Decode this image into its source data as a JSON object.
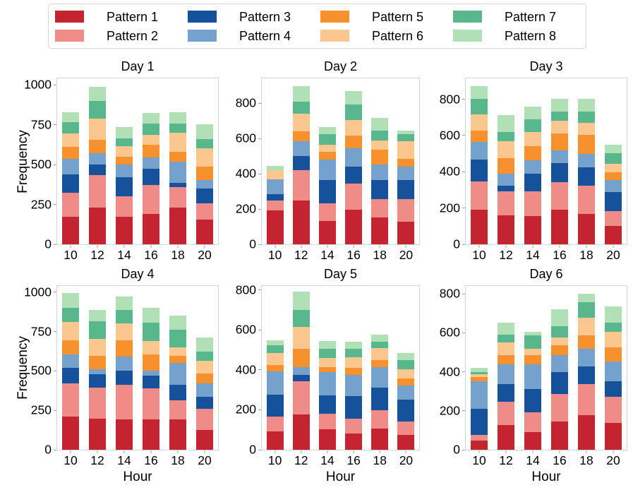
{
  "legend": {
    "items": [
      {
        "label": "Pattern 1",
        "color": "#c3242f"
      },
      {
        "label": "Pattern 2",
        "color": "#f08c88"
      },
      {
        "label": "Pattern 3",
        "color": "#15529b"
      },
      {
        "label": "Pattern 4",
        "color": "#74a2cd"
      },
      {
        "label": "Pattern 5",
        "color": "#f6912e"
      },
      {
        "label": "Pattern 6",
        "color": "#fbc78e"
      },
      {
        "label": "Pattern 7",
        "color": "#58b78c"
      },
      {
        "label": "Pattern 8",
        "color": "#b1e0b7"
      }
    ]
  },
  "axes": {
    "ylabel": "Frequency",
    "xlabel": "Hour"
  },
  "chart_data": [
    {
      "type": "bar",
      "stacked": true,
      "title": "Day 1",
      "categories": [
        "10",
        "12",
        "14",
        "16",
        "18",
        "20"
      ],
      "xlabel": "",
      "ylabel": "Frequency",
      "ylim": [
        0,
        1040
      ],
      "yticks": [
        0,
        250,
        500,
        750,
        1000
      ],
      "series": [
        {
          "name": "Pattern 1",
          "values": [
            170,
            230,
            170,
            190,
            230,
            155
          ]
        },
        {
          "name": "Pattern 2",
          "values": [
            150,
            200,
            130,
            180,
            125,
            100
          ]
        },
        {
          "name": "Pattern 3",
          "values": [
            115,
            65,
            115,
            100,
            25,
            90
          ]
        },
        {
          "name": "Pattern 4",
          "values": [
            95,
            70,
            80,
            70,
            135,
            55
          ]
        },
        {
          "name": "Pattern 5",
          "values": [
            75,
            85,
            50,
            80,
            60,
            85
          ]
        },
        {
          "name": "Pattern 6",
          "values": [
            85,
            130,
            65,
            60,
            120,
            110
          ]
        },
        {
          "name": "Pattern 7",
          "values": [
            70,
            110,
            50,
            70,
            55,
            60
          ]
        },
        {
          "name": "Pattern 8",
          "values": [
            60,
            90,
            70,
            65,
            70,
            90
          ]
        }
      ]
    },
    {
      "type": "bar",
      "stacked": true,
      "title": "Day 2",
      "categories": [
        "10",
        "12",
        "14",
        "16",
        "18",
        "20"
      ],
      "xlabel": "",
      "ylabel": "",
      "ylim": [
        0,
        940
      ],
      "yticks": [
        0,
        200,
        400,
        600,
        800
      ],
      "series": [
        {
          "name": "Pattern 1",
          "values": [
            190,
            245,
            130,
            195,
            150,
            125
          ]
        },
        {
          "name": "Pattern 2",
          "values": [
            55,
            170,
            100,
            145,
            105,
            130
          ]
        },
        {
          "name": "Pattern 3",
          "values": [
            35,
            80,
            130,
            95,
            105,
            105
          ]
        },
        {
          "name": "Pattern 4",
          "values": [
            85,
            85,
            115,
            105,
            90,
            75
          ]
        },
        {
          "name": "Pattern 5",
          "values": [
            0,
            55,
            45,
            70,
            80,
            45
          ]
        },
        {
          "name": "Pattern 6",
          "values": [
            50,
            100,
            40,
            90,
            55,
            100
          ]
        },
        {
          "name": "Pattern 7",
          "values": [
            0,
            65,
            60,
            85,
            55,
            40
          ]
        },
        {
          "name": "Pattern 8",
          "values": [
            25,
            90,
            40,
            75,
            70,
            20
          ]
        }
      ]
    },
    {
      "type": "bar",
      "stacked": true,
      "title": "Day 3",
      "categories": [
        "10",
        "12",
        "14",
        "16",
        "18",
        "20"
      ],
      "xlabel": "",
      "ylabel": "",
      "ylim": [
        0,
        915
      ],
      "yticks": [
        0,
        200,
        400,
        600,
        800
      ],
      "series": [
        {
          "name": "Pattern 1",
          "values": [
            190,
            160,
            155,
            190,
            165,
            100
          ]
        },
        {
          "name": "Pattern 2",
          "values": [
            155,
            130,
            135,
            150,
            155,
            80
          ]
        },
        {
          "name": "Pattern 3",
          "values": [
            120,
            30,
            95,
            105,
            100,
            105
          ]
        },
        {
          "name": "Pattern 4",
          "values": [
            95,
            65,
            75,
            70,
            75,
            65
          ]
        },
        {
          "name": "Pattern 5",
          "values": [
            60,
            85,
            75,
            90,
            105,
            45
          ]
        },
        {
          "name": "Pattern 6",
          "values": [
            90,
            95,
            80,
            70,
            65,
            45
          ]
        },
        {
          "name": "Pattern 7",
          "values": [
            85,
            50,
            70,
            50,
            60,
            60
          ]
        },
        {
          "name": "Pattern 8",
          "values": [
            70,
            90,
            70,
            70,
            70,
            45
          ]
        }
      ]
    },
    {
      "type": "bar",
      "stacked": true,
      "title": "Day 4",
      "categories": [
        "10",
        "12",
        "14",
        "16",
        "18",
        "20"
      ],
      "xlabel": "Hour",
      "ylabel": "Frequency",
      "ylim": [
        0,
        1040
      ],
      "yticks": [
        0,
        250,
        500,
        750,
        1000
      ],
      "series": [
        {
          "name": "Pattern 1",
          "values": [
            210,
            195,
            190,
            190,
            190,
            125
          ]
        },
        {
          "name": "Pattern 2",
          "values": [
            210,
            195,
            220,
            195,
            120,
            135
          ]
        },
        {
          "name": "Pattern 3",
          "values": [
            95,
            85,
            90,
            80,
            100,
            75
          ]
        },
        {
          "name": "Pattern 4",
          "values": [
            85,
            30,
            85,
            35,
            135,
            85
          ]
        },
        {
          "name": "Pattern 5",
          "values": [
            90,
            85,
            105,
            100,
            45,
            60
          ]
        },
        {
          "name": "Pattern 6",
          "values": [
            115,
            110,
            105,
            85,
            55,
            80
          ]
        },
        {
          "name": "Pattern 7",
          "values": [
            90,
            110,
            85,
            115,
            110,
            60
          ]
        },
        {
          "name": "Pattern 8",
          "values": [
            90,
            70,
            85,
            95,
            90,
            85
          ]
        }
      ]
    },
    {
      "type": "bar",
      "stacked": true,
      "title": "Day 5",
      "categories": [
        "10",
        "12",
        "14",
        "16",
        "18",
        "20"
      ],
      "xlabel": "Hour",
      "ylabel": "",
      "ylim": [
        0,
        820
      ],
      "yticks": [
        0,
        200,
        400,
        600,
        800
      ],
      "series": [
        {
          "name": "Pattern 1",
          "values": [
            90,
            175,
            100,
            80,
            105,
            75
          ]
        },
        {
          "name": "Pattern 2",
          "values": [
            75,
            165,
            80,
            75,
            90,
            65
          ]
        },
        {
          "name": "Pattern 3",
          "values": [
            110,
            30,
            90,
            110,
            115,
            110
          ]
        },
        {
          "name": "Pattern 4",
          "values": [
            115,
            40,
            115,
            105,
            100,
            70
          ]
        },
        {
          "name": "Pattern 5",
          "values": [
            30,
            90,
            25,
            35,
            35,
            35
          ]
        },
        {
          "name": "Pattern 6",
          "values": [
            60,
            110,
            45,
            55,
            60,
            45
          ]
        },
        {
          "name": "Pattern 7",
          "values": [
            40,
            85,
            45,
            40,
            30,
            45
          ]
        },
        {
          "name": "Pattern 8",
          "values": [
            25,
            90,
            40,
            35,
            35,
            35
          ]
        }
      ]
    },
    {
      "type": "bar",
      "stacked": true,
      "title": "Day 6",
      "categories": [
        "10",
        "12",
        "14",
        "16",
        "18",
        "20"
      ],
      "xlabel": "Hour",
      "ylabel": "",
      "ylim": [
        0,
        840
      ],
      "yticks": [
        0,
        200,
        400,
        600,
        800
      ],
      "series": [
        {
          "name": "Pattern 1",
          "values": [
            45,
            125,
            90,
            145,
            175,
            135
          ]
        },
        {
          "name": "Pattern 2",
          "values": [
            30,
            120,
            100,
            140,
            160,
            135
          ]
        },
        {
          "name": "Pattern 3",
          "values": [
            135,
            90,
            120,
            110,
            90,
            80
          ]
        },
        {
          "name": "Pattern 4",
          "values": [
            140,
            100,
            125,
            85,
            90,
            100
          ]
        },
        {
          "name": "Pattern 5",
          "values": [
            20,
            45,
            45,
            50,
            65,
            70
          ]
        },
        {
          "name": "Pattern 6",
          "values": [
            15,
            65,
            35,
            40,
            90,
            80
          ]
        },
        {
          "name": "Pattern 7",
          "values": [
            10,
            40,
            65,
            60,
            80,
            45
          ]
        },
        {
          "name": "Pattern 8",
          "values": [
            20,
            60,
            20,
            85,
            45,
            85
          ]
        }
      ]
    }
  ]
}
